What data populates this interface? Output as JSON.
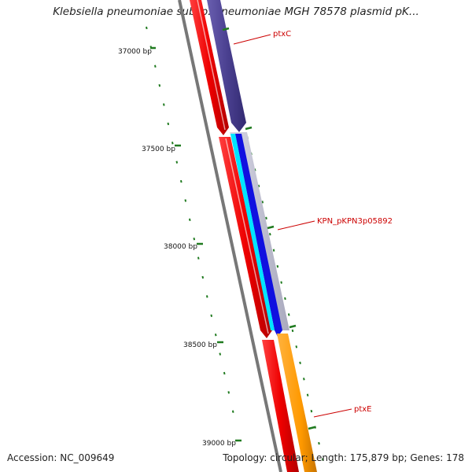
{
  "title": "Klebsiella pneumoniae subsp. pneumoniae MGH 78578 plasmid pK...",
  "footer": {
    "accession": "Accession: NC_009649",
    "summary": "Topology: circular; Length: 175,879 bp; Genes: 178"
  },
  "ticks": [
    "37000 bp",
    "37500 bp",
    "38000 bp",
    "38500 bp",
    "39000 bp"
  ],
  "genes": [
    {
      "name": "ptxC",
      "start": 36350,
      "end": 37410,
      "strand": "plus",
      "color": "#4b4191",
      "label_color": "#cc0000"
    },
    {
      "name": "KPN_pKPN3p05892",
      "start": 37430,
      "end": 38450,
      "strand": "plus",
      "color": "#1010e0",
      "label_color": "#cc0000"
    },
    {
      "name": "ptxE",
      "start": 38460,
      "end": 39400,
      "strand": "plus",
      "color": "#ff9900",
      "label_color": "#cc0000"
    }
  ],
  "overlay_track": {
    "start": 37430,
    "end": 38450,
    "color": "#00e5ff"
  },
  "minus_track": {
    "color": "#ee0000"
  },
  "colors": {
    "backbone": "#777777",
    "tick": "#1f7a1f",
    "label_line": "#cc0000",
    "gc_dots": "#1f7a1f"
  }
}
